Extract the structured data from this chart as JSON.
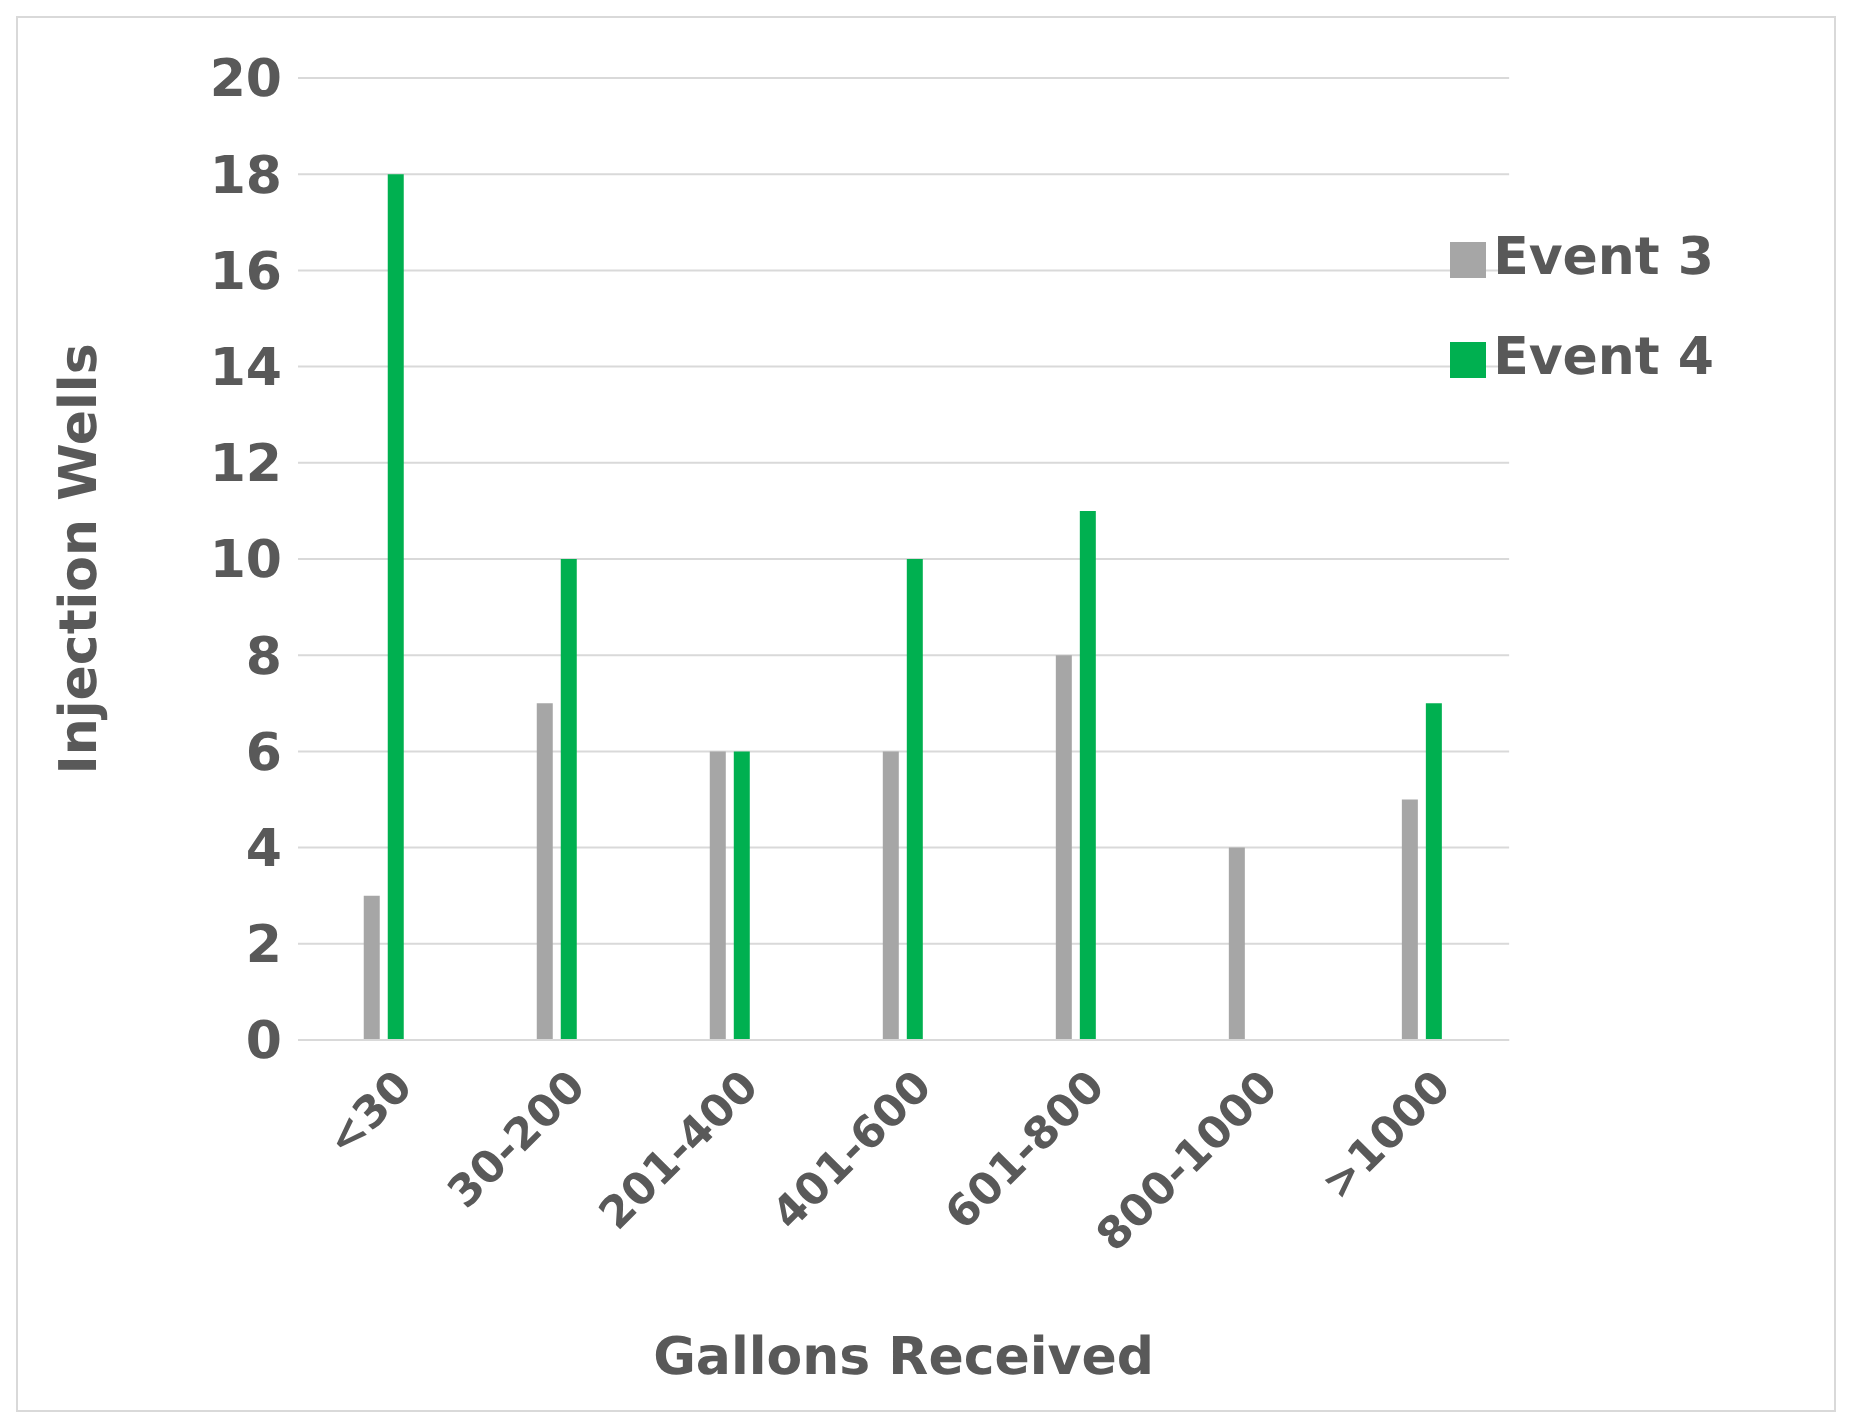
{
  "chart_data": {
    "type": "bar",
    "xlabel": "Gallons Received",
    "ylabel": "Injection Wells",
    "categories": [
      "<30",
      "30-200",
      "201-400",
      "401-600",
      "601-800",
      "800-1000",
      ">1000"
    ],
    "series": [
      {
        "name": "Event 3",
        "color": "#a6a6a6",
        "values": [
          3,
          7,
          6,
          6,
          8,
          4,
          5
        ]
      },
      {
        "name": "Event 4",
        "color": "#00b050",
        "values": [
          18,
          10,
          6,
          10,
          11,
          0,
          7
        ]
      }
    ],
    "ylim": [
      0,
      20
    ],
    "yticks": [
      0,
      2,
      4,
      6,
      8,
      10,
      12,
      14,
      16,
      18,
      20
    ],
    "grid": "y",
    "legend": "top right"
  }
}
